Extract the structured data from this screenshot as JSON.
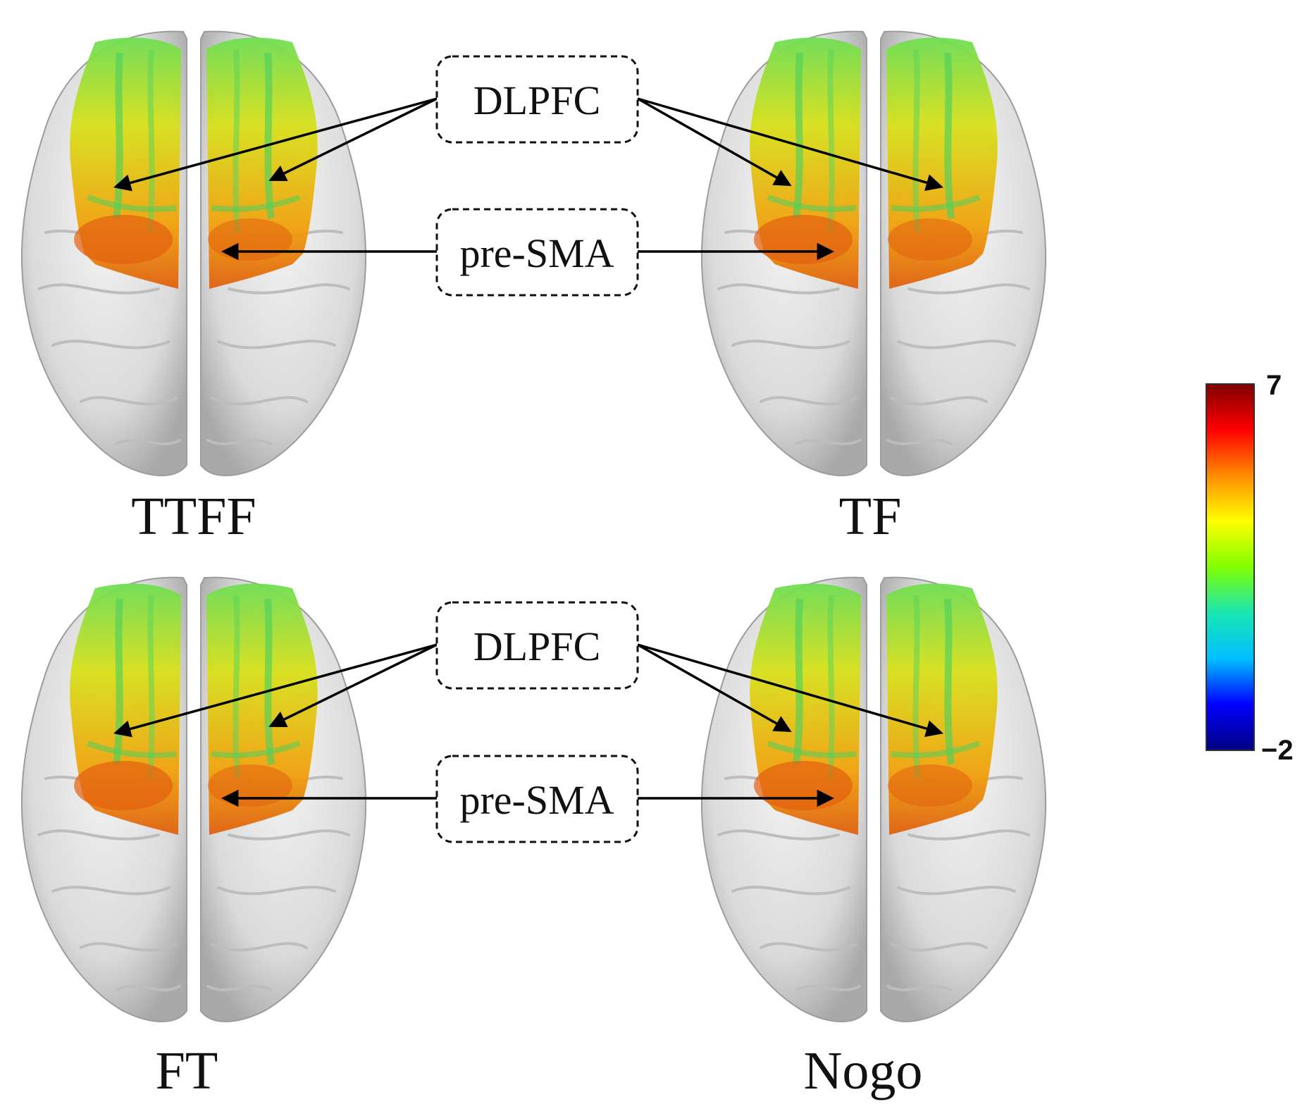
{
  "panels": [
    {
      "id": "ttff",
      "label": "TTFF",
      "intensity": 0.62
    },
    {
      "id": "tf",
      "label": "TF",
      "intensity": 0.6
    },
    {
      "id": "ft",
      "label": "FT",
      "intensity": 0.55
    },
    {
      "id": "nogo",
      "label": "Nogo",
      "intensity": 0.62
    }
  ],
  "callouts": {
    "top": {
      "dlpfc": "DLPFC",
      "presma": "pre-SMA"
    },
    "bottom": {
      "dlpfc": "DLPFC",
      "presma": "pre-SMA"
    }
  },
  "colorbar": {
    "max": "7",
    "min": "−2",
    "colormap": "jet",
    "stops": [
      "#00007f",
      "#0000ff",
      "#00bfff",
      "#19e6b3",
      "#7fff00",
      "#ffff00",
      "#ff8c00",
      "#ff0000",
      "#7f0000"
    ]
  },
  "colors": {
    "brain_surface": "#e2e2e2",
    "brain_shadow": "#a9a9a9",
    "activation_low": "#4fd96b",
    "activation_mid": "#e8d60c",
    "activation_high": "#e86a10"
  }
}
